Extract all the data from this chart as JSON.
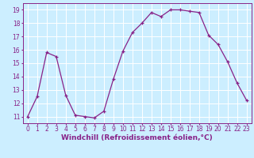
{
  "x": [
    0,
    1,
    2,
    3,
    4,
    5,
    6,
    7,
    8,
    9,
    10,
    11,
    12,
    13,
    14,
    15,
    16,
    17,
    18,
    19,
    20,
    21,
    22,
    23
  ],
  "y": [
    11.0,
    12.5,
    15.8,
    15.5,
    12.6,
    11.1,
    11.0,
    10.9,
    11.4,
    13.8,
    15.9,
    17.3,
    18.0,
    18.8,
    18.5,
    19.0,
    19.0,
    18.9,
    18.8,
    17.1,
    16.4,
    15.1,
    13.5,
    12.2
  ],
  "line_color": "#882288",
  "marker": "+",
  "marker_size": 3,
  "linewidth": 0.9,
  "markeredgewidth": 0.9,
  "xlabel": "Windchill (Refroidissement éolien,°C)",
  "xlabel_fontsize": 6.5,
  "ylim": [
    10.5,
    19.5
  ],
  "xlim": [
    -0.5,
    23.5
  ],
  "yticks": [
    11,
    12,
    13,
    14,
    15,
    16,
    17,
    18,
    19
  ],
  "xticks": [
    0,
    1,
    2,
    3,
    4,
    5,
    6,
    7,
    8,
    9,
    10,
    11,
    12,
    13,
    14,
    15,
    16,
    17,
    18,
    19,
    20,
    21,
    22,
    23
  ],
  "background_color": "#cceeff",
  "grid_color": "#aadddd",
  "tick_color": "#882288",
  "tick_fontsize": 5.5,
  "xlabel_color": "#882288",
  "spine_color": "#882288"
}
